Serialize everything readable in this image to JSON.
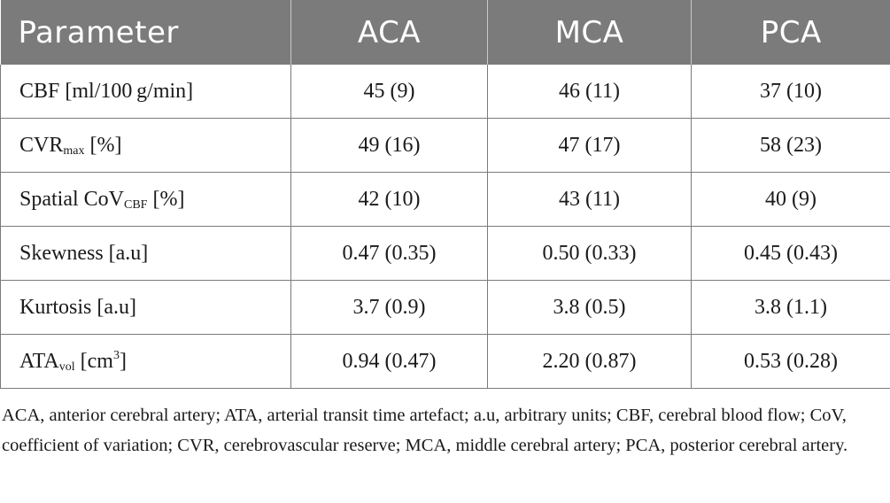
{
  "table": {
    "headers": [
      "Parameter",
      "ACA",
      "MCA",
      "PCA"
    ],
    "rows": [
      {
        "param": {
          "base": "CBF [ml/100 g/min]"
        },
        "aca": "45 (9)",
        "mca": "46 (11)",
        "pca": "37 (10)"
      },
      {
        "param": {
          "base": "CVR",
          "sub": "max",
          "suffix": " [%]"
        },
        "aca": "49 (16)",
        "mca": "47 (17)",
        "pca": "58 (23)"
      },
      {
        "param": {
          "base": "Spatial CoV",
          "sub": "CBF",
          "suffix": " [%]"
        },
        "aca": "42 (10)",
        "mca": "43 (11)",
        "pca": "40 (9)"
      },
      {
        "param": {
          "base": "Skewness [a.u]"
        },
        "aca": "0.47 (0.35)",
        "mca": "0.50 (0.33)",
        "pca": "0.45 (0.43)"
      },
      {
        "param": {
          "base": "Kurtosis [a.u]"
        },
        "aca": "3.7 (0.9)",
        "mca": "3.8 (0.5)",
        "pca": "3.8 (1.1)"
      },
      {
        "param": {
          "base": "ATA",
          "sub": "vol",
          "suffix": " [cm",
          "sup": "3",
          "end": "]"
        },
        "aca": "0.94 (0.47)",
        "mca": "2.20 (0.87)",
        "pca": "0.53 (0.28)"
      }
    ]
  },
  "footnote": "ACA, anterior cerebral artery; ATA, arterial transit time artefact; a.u, arbitrary units; CBF, cerebral blood flow; CoV, coefficient of variation; CVR, cerebrovascular reserve; MCA, middle cerebral artery; PCA, posterior cerebral artery."
}
